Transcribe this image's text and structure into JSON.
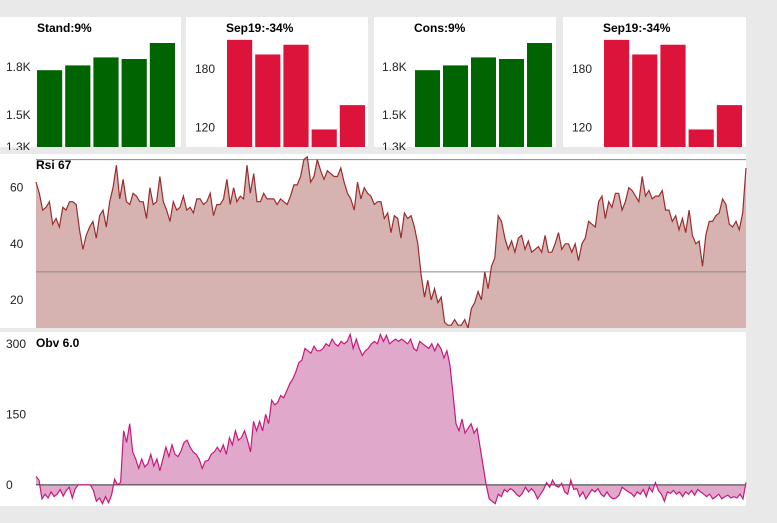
{
  "colors": {
    "panel_bg": "#ffffff",
    "page_bg": "#e9e9e9",
    "up_bar": "#006400",
    "down_bar": "#dc143c",
    "rsi_line": "#9b2d2d",
    "rsi_fill": "#d6b2b0",
    "obv_line": "#c8187c",
    "obv_fill": "#e0a9cb"
  },
  "chart_data": [
    {
      "type": "bar",
      "title": "Stand:9%",
      "values": [
        1780,
        1810,
        1860,
        1850,
        1950
      ],
      "ylim": [
        1300,
        2000
      ],
      "ytick_values": [
        1300,
        1500,
        1800
      ],
      "yticks": [
        "1.3K",
        "1.5K",
        "1.8K"
      ],
      "bar_color": "#006400"
    },
    {
      "type": "bar",
      "title": "Sep19:-34%",
      "values": [
        210,
        195,
        205,
        118,
        143
      ],
      "ylim": [
        100,
        215
      ],
      "ytick_values": [
        120,
        180
      ],
      "yticks": [
        "120",
        "180"
      ],
      "bar_color": "#dc143c"
    },
    {
      "type": "bar",
      "title": "Cons:9%",
      "values": [
        1780,
        1810,
        1860,
        1850,
        1950
      ],
      "ylim": [
        1300,
        2000
      ],
      "ytick_values": [
        1300,
        1500,
        1800
      ],
      "yticks": [
        "1.3K",
        "1.5K",
        "1.8K"
      ],
      "bar_color": "#006400"
    },
    {
      "type": "bar",
      "title": "Sep19:-34%",
      "values": [
        210,
        195,
        205,
        118,
        143
      ],
      "ylim": [
        100,
        215
      ],
      "ytick_values": [
        120,
        180
      ],
      "yticks": [
        "120",
        "180"
      ],
      "bar_color": "#dc143c"
    },
    {
      "type": "area",
      "title": "Rsi 67",
      "ylim": [
        10,
        72
      ],
      "ytick_values": [
        20,
        40,
        60
      ],
      "yticks": [
        "20",
        "40",
        "60"
      ],
      "reference_lines": [
        70,
        30
      ],
      "values": [
        62,
        58,
        52,
        53,
        55,
        47,
        49,
        46,
        53,
        52,
        55,
        55,
        54,
        45,
        38,
        43,
        46,
        48,
        42,
        50,
        52,
        46,
        55,
        60,
        68,
        56,
        63,
        55,
        54,
        58,
        57,
        55,
        55,
        49,
        60,
        54,
        55,
        64,
        55,
        52,
        48,
        55,
        52,
        53,
        57,
        52,
        53,
        51,
        56,
        56,
        54,
        55,
        58,
        50,
        54,
        54,
        56,
        63,
        54,
        60,
        55,
        57,
        56,
        68,
        58,
        65,
        55,
        55,
        58,
        56,
        56,
        56,
        54,
        56,
        55,
        54,
        57,
        61,
        61,
        64,
        70,
        71,
        62,
        64,
        70,
        66,
        63,
        66,
        65,
        64,
        64,
        67,
        62,
        58,
        56,
        52,
        62,
        56,
        60,
        58,
        57,
        54,
        55,
        55,
        49,
        51,
        44,
        50,
        49,
        42,
        51,
        49,
        50,
        46,
        40,
        29,
        21,
        27,
        20,
        24,
        19,
        21,
        12,
        11,
        11,
        13,
        11,
        11,
        13,
        10,
        17,
        19,
        23,
        20,
        30,
        24,
        32,
        35,
        50,
        48,
        42,
        38,
        41,
        37,
        42,
        43,
        38,
        41,
        37,
        38,
        39,
        37,
        43,
        37,
        37,
        40,
        44,
        38,
        40,
        40,
        37,
        40,
        34,
        40,
        42,
        48,
        47,
        46,
        55,
        57,
        49,
        55,
        53,
        58,
        58,
        52,
        55,
        60,
        59,
        57,
        55,
        64,
        57,
        59,
        56,
        57,
        57,
        59,
        52,
        52,
        48,
        50,
        45,
        49,
        44,
        52,
        43,
        40,
        41,
        32,
        43,
        48,
        48,
        50,
        51,
        56,
        54,
        47,
        46,
        48,
        45,
        51,
        67
      ]
    },
    {
      "type": "area",
      "title": "Obv 6.0",
      "ylim": [
        -45,
        325
      ],
      "ytick_values": [
        0,
        150,
        300
      ],
      "yticks": [
        "0",
        "150",
        "300"
      ],
      "values": [
        18,
        10,
        -30,
        -20,
        -28,
        -15,
        -25,
        -20,
        -10,
        -24,
        -12,
        -5,
        -28,
        -8,
        0,
        0,
        0,
        0,
        0,
        -12,
        -35,
        -28,
        -40,
        -25,
        -38,
        -22,
        12,
        0,
        5,
        115,
        90,
        130,
        70,
        55,
        35,
        55,
        38,
        45,
        65,
        40,
        55,
        30,
        55,
        80,
        60,
        85,
        65,
        60,
        72,
        90,
        95,
        80,
        70,
        65,
        55,
        35,
        50,
        52,
        65,
        70,
        80,
        70,
        85,
        65,
        100,
        85,
        115,
        95,
        100,
        115,
        95,
        70,
        135,
        115,
        135,
        115,
        150,
        130,
        180,
        170,
        175,
        190,
        185,
        200,
        215,
        225,
        240,
        260,
        265,
        290,
        285,
        280,
        295,
        285,
        285,
        290,
        300,
        295,
        310,
        300,
        295,
        305,
        300,
        305,
        320,
        290,
        310,
        290,
        275,
        285,
        290,
        300,
        305,
        300,
        320,
        305,
        318,
        300,
        305,
        310,
        305,
        310,
        305,
        300,
        310,
        290,
        285,
        305,
        300,
        295,
        290,
        300,
        285,
        300,
        290,
        270,
        285,
        255,
        195,
        130,
        115,
        140,
        110,
        120,
        130,
        110,
        120,
        80,
        40,
        0,
        -30,
        -35,
        -40,
        -20,
        -25,
        -10,
        -15,
        -8,
        -12,
        -20,
        -25,
        -18,
        -5,
        -15,
        -8,
        -15,
        -30,
        -20,
        -10,
        5,
        -5,
        10,
        -2,
        -5,
        3,
        -15,
        -20,
        10,
        -10,
        -8,
        -25,
        -15,
        -30,
        -20,
        -10,
        -15,
        -8,
        -20,
        -25,
        -15,
        -25,
        -30,
        -28,
        -22,
        -5,
        -10,
        -15,
        -18,
        -25,
        -15,
        -20,
        -10,
        -25,
        -5,
        -15,
        5,
        -12,
        -20,
        -35,
        -15,
        -18,
        -12,
        -20,
        -15,
        -25,
        -15,
        -20,
        -12,
        -22,
        -10,
        -15,
        -20,
        -25,
        -20,
        -30,
        -25,
        -20,
        -30,
        -25,
        -22,
        -28,
        -25,
        -28,
        -20,
        -30,
        5
      ]
    }
  ]
}
